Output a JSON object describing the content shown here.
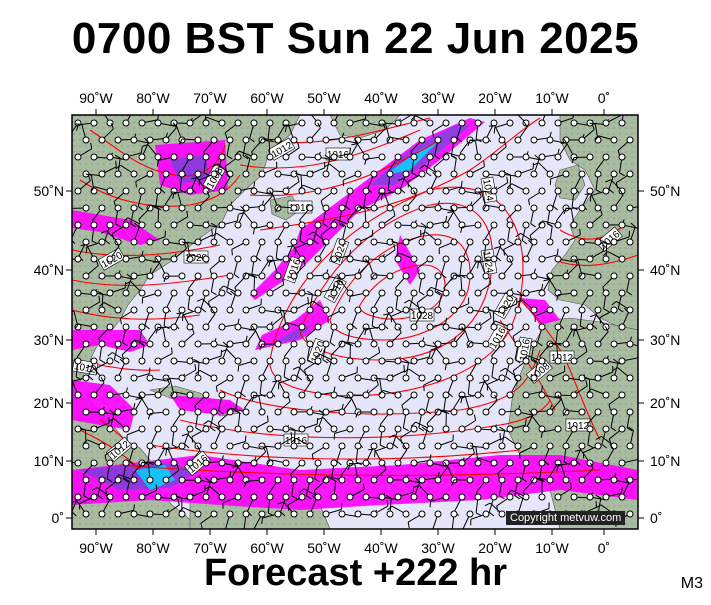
{
  "title": "0700 BST Sun 22 Jun 2025",
  "forecast_label": "Forecast +222 hr",
  "model_label": "M3",
  "copyright": "Copyright metvuw.com",
  "colors": {
    "ocean": "#e6e6fa",
    "land": "#a9bca2",
    "isobar": "#ff0000",
    "rain_light": "#ff00ff",
    "rain_mid": "#8a2be2",
    "rain_heavy": "#00bfff"
  },
  "axes": {
    "top_lon_labels": [
      "90˚W",
      "80˚W",
      "70˚W",
      "60˚W",
      "50˚W",
      "40˚W",
      "30˚W",
      "20˚W",
      "10˚W",
      "0˚"
    ],
    "bottom_lon_labels": [
      "90˚W",
      "80˚W",
      "70˚W",
      "60˚W",
      "50˚W",
      "40˚W",
      "30˚W",
      "20˚W",
      "10˚W",
      "0˚"
    ],
    "left_lat_labels": [
      "50˚N",
      "40˚N",
      "30˚N",
      "20˚N",
      "10˚N",
      "0˚"
    ],
    "right_lat_labels": [
      "50˚N",
      "40˚N",
      "30˚N",
      "20˚N",
      "10˚N",
      "0˚"
    ]
  },
  "isobar_labels": [
    "1008",
    "1012",
    "1016",
    "1016",
    "1020",
    "1020",
    "1016",
    "1016",
    "1024",
    "1024",
    "1028",
    "1024",
    "1020",
    "1016",
    "1016",
    "1012",
    "1008",
    "1012",
    "1016",
    "1012",
    "1012",
    "1016",
    "1020",
    "1016"
  ]
}
